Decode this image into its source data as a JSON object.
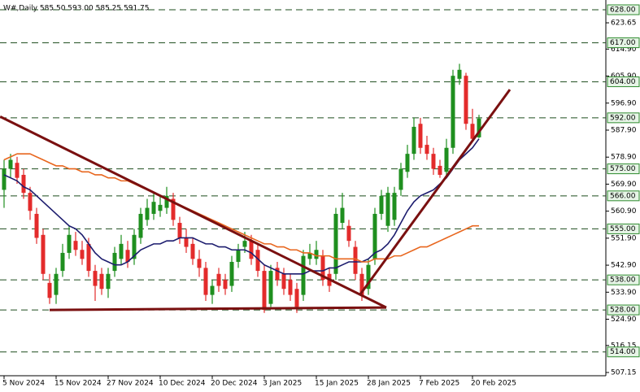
{
  "chart_data": {
    "type": "candlestick",
    "title": "W#,Daily  585.50 593.00 585.25 591.75",
    "categories": [
      "5 Nov 2024",
      null,
      null,
      null,
      null,
      null,
      null,
      null,
      "15 Nov 2024",
      null,
      null,
      null,
      null,
      null,
      null,
      null,
      "27 Nov 2024",
      null,
      null,
      null,
      null,
      null,
      null,
      null,
      "10 Dec 2024",
      null,
      null,
      null,
      null,
      null,
      null,
      null,
      "20 Dec 2024",
      null,
      null,
      null,
      null,
      null,
      null,
      null,
      "3 Jan 2025",
      null,
      null,
      null,
      null,
      null,
      null,
      null,
      "15 Jan 2025",
      null,
      null,
      null,
      null,
      null,
      null,
      null,
      "28 Jan 2025",
      null,
      null,
      null,
      null,
      null,
      null,
      null,
      "7 Feb 2025",
      null,
      null,
      null,
      null,
      null,
      null,
      null,
      "20 Feb 2025",
      null
    ],
    "open": [
      568,
      575,
      577,
      573,
      567,
      560,
      553,
      537,
      533,
      541,
      547,
      551,
      548,
      550,
      541,
      540,
      535,
      541,
      545,
      548,
      545,
      552,
      558,
      560,
      561,
      562,
      565,
      557,
      552,
      550,
      545,
      542,
      533,
      540,
      538,
      536,
      544,
      549,
      551,
      548,
      541,
      530,
      542,
      540,
      538,
      535,
      533,
      545,
      545,
      546,
      540,
      540,
      557,
      556,
      549,
      540,
      535,
      545,
      560,
      556,
      558,
      568,
      574,
      580,
      590,
      583,
      580,
      576,
      574,
      582,
      605,
      606,
      590,
      585.5
    ],
    "high": [
      578,
      580,
      579,
      575,
      569,
      562,
      555,
      540,
      542,
      550,
      556,
      554,
      551,
      552,
      543,
      542,
      542,
      549,
      553,
      551,
      555,
      562,
      565,
      567,
      566,
      569,
      567,
      559,
      555,
      552,
      548,
      544,
      538,
      542,
      540,
      546,
      550,
      554,
      553,
      550,
      543,
      543,
      544,
      542,
      540,
      537,
      548,
      550,
      551,
      548,
      542,
      562,
      567,
      558,
      551,
      542,
      545,
      562,
      568,
      569,
      569,
      577,
      583,
      592,
      592,
      586,
      582,
      578,
      585,
      608,
      610,
      607,
      595,
      593
    ],
    "low": [
      562,
      572,
      570,
      565,
      558,
      550,
      538,
      530,
      530,
      539,
      545,
      546,
      543,
      539,
      531,
      533,
      532,
      539,
      543,
      542,
      543,
      550,
      556,
      558,
      559,
      560,
      556,
      550,
      547,
      543,
      539,
      531,
      530,
      534,
      533,
      534,
      542,
      547,
      543,
      539,
      527,
      529,
      536,
      533,
      531,
      527,
      531,
      543,
      543,
      536,
      534,
      538,
      555,
      549,
      538,
      531,
      533,
      543,
      558,
      554,
      556,
      566,
      572,
      578,
      580,
      578,
      573,
      572,
      572,
      580,
      603,
      588,
      584,
      585.25
    ],
    "close": [
      575,
      578,
      572,
      567,
      561,
      552,
      540,
      532,
      540,
      547,
      553,
      548,
      545,
      541,
      536,
      535,
      540,
      547,
      550,
      544,
      553,
      560,
      562,
      564,
      563,
      566,
      558,
      552,
      549,
      545,
      542,
      533,
      536,
      536,
      535,
      544,
      548,
      551,
      545,
      541,
      528,
      541,
      538,
      535,
      533,
      529,
      546,
      547,
      548,
      538,
      536,
      560,
      562,
      551,
      540,
      533,
      543,
      560,
      566,
      567,
      567,
      575,
      580,
      589,
      582,
      580,
      575,
      573,
      582,
      606,
      608,
      590,
      585,
      591.75
    ],
    "up_color": "#1f8f1f",
    "down_color": "#e32b2b",
    "series": [
      {
        "color": "#1c1c6e",
        "values": [
          573,
          572,
          571,
          569,
          568,
          566,
          564,
          562,
          560,
          558,
          556,
          555,
          553,
          550,
          547,
          545,
          544,
          543,
          543,
          544,
          546,
          548,
          549,
          550,
          550,
          551,
          551,
          552,
          552,
          552,
          551,
          550,
          550,
          549,
          549,
          548,
          548,
          548,
          547,
          545,
          543,
          542,
          541,
          540,
          540,
          540,
          540,
          541,
          541,
          541,
          542,
          542,
          543,
          544,
          544,
          544,
          545,
          547,
          548,
          550,
          553,
          557,
          561,
          564,
          566,
          567,
          568,
          570,
          572,
          575,
          578,
          580,
          582,
          585
        ]
      },
      {
        "color": "#e8661e",
        "values": [
          578,
          579,
          580,
          580,
          580,
          579,
          578,
          577,
          576,
          576,
          575,
          575,
          574,
          574,
          573,
          573,
          572,
          572,
          571,
          571,
          570,
          569,
          568,
          567,
          566,
          565,
          564,
          563,
          562,
          561,
          560,
          559,
          558,
          557,
          556,
          555,
          554,
          553,
          552,
          551,
          550,
          550,
          549,
          549,
          548,
          548,
          547,
          547,
          546,
          546,
          546,
          545,
          545,
          545,
          545,
          544,
          544,
          545,
          545,
          545,
          546,
          546,
          547,
          548,
          549,
          549,
          550,
          551,
          552,
          553,
          554,
          555,
          556,
          556
        ]
      }
    ],
    "trendlines": [
      {
        "color": "#7a1010",
        "x": [
          -0.6,
          58.75
        ],
        "y": [
          592.4,
          528.8
        ]
      },
      {
        "color": "#7a1010",
        "x": [
          7,
          58.75
        ],
        "y": [
          528,
          528.8
        ]
      },
      {
        "color": "#7a1010",
        "x": [
          54.75,
          77.75
        ],
        "y": [
          533.2,
          601.4
        ]
      }
    ],
    "levels": [
      {
        "value": 628,
        "label": "628.00"
      },
      {
        "value": 617,
        "label": "617.00"
      },
      {
        "value": 604,
        "label": "604.00"
      },
      {
        "value": 592,
        "label": "592.00"
      },
      {
        "value": 575,
        "label": "575.00"
      },
      {
        "value": 566,
        "label": "566.00"
      },
      {
        "value": 555,
        "label": "555.00"
      },
      {
        "value": 538,
        "label": "538.00"
      },
      {
        "value": 528,
        "label": "528.00"
      },
      {
        "value": 514,
        "label": "514.00"
      }
    ],
    "level_color": "#1e4d1e",
    "xlim": [
      -0.625,
      92.5
    ],
    "ylim": [
      506.07,
      631.25
    ],
    "yticks": [
      {
        "value": 623.65,
        "label": "623.65"
      },
      {
        "value": 614.9,
        "label": "614.90"
      },
      {
        "value": 605.9,
        "label": "605.90"
      },
      {
        "value": 596.9,
        "label": "596.90"
      },
      {
        "value": 587.9,
        "label": "587.90"
      },
      {
        "value": 578.9,
        "label": "578.90"
      },
      {
        "value": 569.9,
        "label": "569.90"
      },
      {
        "value": 560.9,
        "label": "560.90"
      },
      {
        "value": 551.9,
        "label": "551.90"
      },
      {
        "value": 542.9,
        "label": "542.90"
      },
      {
        "value": 533.9,
        "label": "533.90"
      },
      {
        "value": 524.9,
        "label": "524.90"
      },
      {
        "value": 516.15,
        "label": "516.15"
      },
      {
        "value": 507.15,
        "label": "507.15"
      }
    ]
  }
}
